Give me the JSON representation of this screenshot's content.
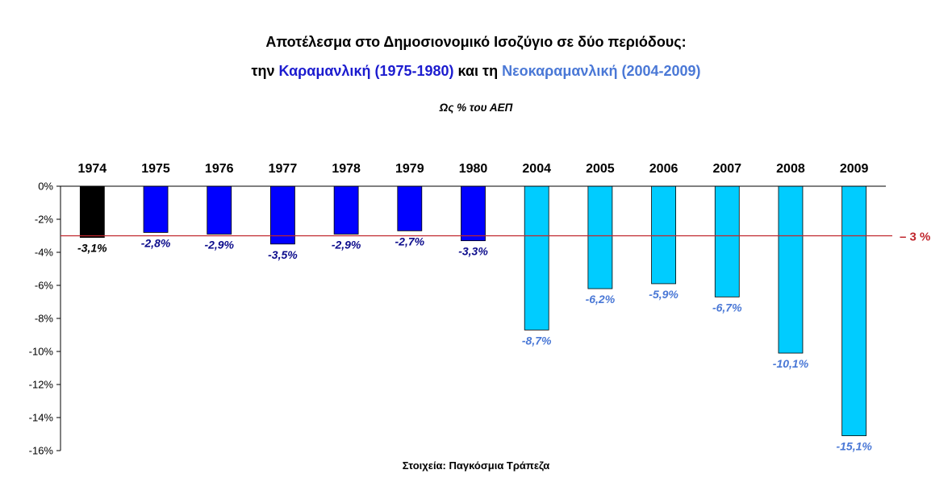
{
  "title_line1": "Αποτέλεσμα στο Δημοσιονομικό Ισοζύγιο σε δύο περιόδους:",
  "title_line2": {
    "prefix": "την ",
    "period1": "Καραμανλική (1975-1980)",
    "middle": " και τη ",
    "period2": "Νεοκαραμανλική (2004-2009)"
  },
  "subtitle": "Ως % του ΑΕΠ",
  "source": "Στοιχεία: Παγκόσμια Τράπεζα",
  "colors": {
    "first_year": "#000000",
    "karamanlis_period": "#0000ff",
    "neokaramanlis_period": "#00ccff",
    "label_dark": "#0c0c8c",
    "label_light": "#4a78d6",
    "reference_line": "#c0262d"
  },
  "chart_data": {
    "type": "bar",
    "categories": [
      "1974",
      "1975",
      "1976",
      "1977",
      "1978",
      "1979",
      "1980",
      "2004",
      "2005",
      "2006",
      "2007",
      "2008",
      "2009"
    ],
    "values": [
      -3.1,
      -2.8,
      -2.9,
      -3.5,
      -2.9,
      -2.7,
      -3.3,
      -8.7,
      -6.2,
      -5.9,
      -6.7,
      -10.1,
      -15.1
    ],
    "data_labels": [
      "-3,1%",
      "-2,8%",
      "-2,9%",
      "-3,5%",
      "-2,9%",
      "-2,7%",
      "-3,3%",
      "-8,7%",
      "-6,2%",
      "-5,9%",
      "-6,7%",
      "-10,1%",
      "-15,1%"
    ],
    "groups": [
      "first_year",
      "karamanlis_period",
      "karamanlis_period",
      "karamanlis_period",
      "karamanlis_period",
      "karamanlis_period",
      "karamanlis_period",
      "neokaramanlis_period",
      "neokaramanlis_period",
      "neokaramanlis_period",
      "neokaramanlis_period",
      "neokaramanlis_period",
      "neokaramanlis_period"
    ],
    "ylim": [
      -16,
      0
    ],
    "yticks": [
      0,
      -2,
      -4,
      -6,
      -8,
      -10,
      -12,
      -14,
      -16
    ],
    "ytick_labels": [
      "0%",
      "-2%",
      "-4%",
      "-6%",
      "-8%",
      "-10%",
      "-12%",
      "-14%",
      "-16%"
    ],
    "xaxis_position": "top",
    "reference_line": {
      "value": -3,
      "label": "– 3 %"
    },
    "grid": false,
    "legend": "none"
  }
}
